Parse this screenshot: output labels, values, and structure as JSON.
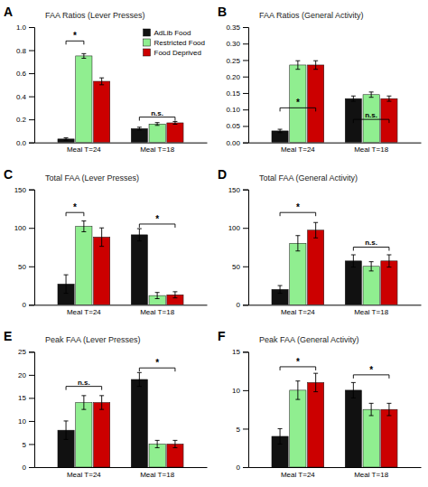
{
  "chart_data": [
    {
      "type": "bar",
      "panel_label": "A",
      "title": "FAA Ratios (Lever Presses)",
      "categories": [
        "Meal T=24",
        "Meal T=18"
      ],
      "series": [
        {
          "name": "AdLib Food",
          "color": "#111111",
          "values": [
            0.03,
            0.12
          ],
          "errors": [
            0.01,
            0.012
          ]
        },
        {
          "name": "Restricted Food",
          "color": "#90EE90",
          "values": [
            0.75,
            0.16
          ],
          "errors": [
            0.02,
            0.012
          ]
        },
        {
          "name": "Food Deprived",
          "color": "#CC0000",
          "values": [
            0.53,
            0.17
          ],
          "errors": [
            0.03,
            0.012
          ]
        }
      ],
      "ylim": [
        0,
        1.0
      ],
      "yticks": [
        {
          "value": 0,
          "label": "0.0"
        },
        0.2,
        0.4,
        0.6,
        0.8,
        {
          "value": 1.0,
          "label": "1.0"
        }
      ],
      "annotations": [
        {
          "text": "*",
          "category": 0,
          "from_series": 0,
          "to_series": 1,
          "y": 0.88
        },
        {
          "text": "n.s.",
          "category": 1,
          "from_series": 0,
          "to_series": 2,
          "y": 0.22
        }
      ],
      "legend": "upper right",
      "grid": false
    },
    {
      "type": "bar",
      "panel_label": "B",
      "title": "FAA Ratios (General Activity)",
      "categories": [
        "Meal T=24",
        "Meal T=18"
      ],
      "series": [
        {
          "name": "AdLib Food",
          "color": "#111111",
          "values": [
            0.035,
            0.133
          ],
          "errors": [
            0.005,
            0.008
          ]
        },
        {
          "name": "Restricted Food",
          "color": "#90EE90",
          "values": [
            0.235,
            0.145
          ],
          "errors": [
            0.013,
            0.008
          ]
        },
        {
          "name": "Food Deprived",
          "color": "#CC0000",
          "values": [
            0.235,
            0.133
          ],
          "errors": [
            0.013,
            0.008
          ]
        }
      ],
      "ylim": [
        0,
        0.35
      ],
      "yticks": [
        {
          "value": 0,
          "label": "0.00"
        },
        0.05,
        {
          "value": 0.1,
          "label": "0.10"
        },
        0.15,
        {
          "value": 0.2,
          "label": "0.20"
        },
        0.25,
        {
          "value": 0.3,
          "label": "0.30"
        },
        0.35
      ],
      "annotations": [
        {
          "text": "*",
          "category": 0,
          "from_series": 0,
          "to_series": 2,
          "y": 0.105
        },
        {
          "text": "n.s.",
          "category": 1,
          "from_series": 0,
          "to_series": 2,
          "y": 0.07
        }
      ],
      "legend": false,
      "grid": false
    },
    {
      "type": "bar",
      "panel_label": "C",
      "title": "Total FAA (Lever Presses)",
      "categories": [
        "Meal T=24",
        "Meal T=18"
      ],
      "series": [
        {
          "name": "AdLib Food",
          "color": "#111111",
          "values": [
            27,
            91
          ],
          "errors": [
            12,
            8
          ]
        },
        {
          "name": "Restricted Food",
          "color": "#90EE90",
          "values": [
            102,
            12
          ],
          "errors": [
            7,
            4
          ]
        },
        {
          "name": "Food Deprived",
          "color": "#CC0000",
          "values": [
            88,
            13
          ],
          "errors": [
            12,
            4
          ]
        }
      ],
      "ylim": [
        0,
        150
      ],
      "yticks": [
        0,
        50,
        100,
        150
      ],
      "annotations": [
        {
          "text": "*",
          "category": 0,
          "from_series": 0,
          "to_series": 1,
          "y": 120
        },
        {
          "text": "*",
          "category": 1,
          "from_series": 0,
          "to_series": 2,
          "y": 105
        }
      ],
      "legend": false,
      "grid": false
    },
    {
      "type": "bar",
      "panel_label": "D",
      "title": "Total FAA (General Activity)",
      "categories": [
        "Meal T=24",
        "Meal T=18"
      ],
      "series": [
        {
          "name": "AdLib Food",
          "color": "#111111",
          "values": [
            20,
            57
          ],
          "errors": [
            5,
            8
          ]
        },
        {
          "name": "Restricted Food",
          "color": "#90EE90",
          "values": [
            80,
            50
          ],
          "errors": [
            10,
            6
          ]
        },
        {
          "name": "Food Deprived",
          "color": "#CC0000",
          "values": [
            97,
            57
          ],
          "errors": [
            10,
            8
          ]
        }
      ],
      "ylim": [
        0,
        150
      ],
      "yticks": [
        0,
        50,
        100,
        150
      ],
      "annotations": [
        {
          "text": "*",
          "category": 0,
          "from_series": 0,
          "to_series": 2,
          "y": 120
        },
        {
          "text": "n.s.",
          "category": 1,
          "from_series": 0,
          "to_series": 2,
          "y": 75
        }
      ],
      "legend": false,
      "grid": false
    },
    {
      "type": "bar",
      "panel_label": "E",
      "title": "Peak FAA (Lever Presses)",
      "categories": [
        "Meal T=24",
        "Meal T=18"
      ],
      "series": [
        {
          "name": "AdLib Food",
          "color": "#111111",
          "values": [
            8,
            19
          ],
          "errors": [
            2,
            1.5
          ]
        },
        {
          "name": "Restricted Food",
          "color": "#90EE90",
          "values": [
            14,
            5
          ],
          "errors": [
            1.5,
            0.8
          ]
        },
        {
          "name": "Food Deprived",
          "color": "#CC0000",
          "values": [
            14,
            5
          ],
          "errors": [
            1.5,
            0.8
          ]
        }
      ],
      "ylim": [
        0,
        25
      ],
      "yticks": [
        0,
        5,
        10,
        15,
        20,
        25
      ],
      "annotations": [
        {
          "text": "n.s.",
          "category": 0,
          "from_series": 0,
          "to_series": 2,
          "y": 17.5
        },
        {
          "text": "*",
          "category": 1,
          "from_series": 0,
          "to_series": 2,
          "y": 21.5
        }
      ],
      "legend": false,
      "grid": false
    },
    {
      "type": "bar",
      "panel_label": "F",
      "title": "Peak FAA (General Activity)",
      "categories": [
        "Meal T=24",
        "Meal T=18"
      ],
      "series": [
        {
          "name": "AdLib Food",
          "color": "#111111",
          "values": [
            4,
            10
          ],
          "errors": [
            1,
            1
          ]
        },
        {
          "name": "Restricted Food",
          "color": "#90EE90",
          "values": [
            10,
            7.5
          ],
          "errors": [
            1.2,
            0.8
          ]
        },
        {
          "name": "Food Deprived",
          "color": "#CC0000",
          "values": [
            11,
            7.5
          ],
          "errors": [
            1.2,
            0.8
          ]
        }
      ],
      "ylim": [
        0,
        15
      ],
      "yticks": [
        0,
        5,
        10,
        15
      ],
      "annotations": [
        {
          "text": "*",
          "category": 0,
          "from_series": 0,
          "to_series": 2,
          "y": 13.05
        },
        {
          "text": "*",
          "category": 1,
          "from_series": 0,
          "to_series": 2,
          "y": 12
        }
      ],
      "legend": false,
      "grid": false
    }
  ]
}
